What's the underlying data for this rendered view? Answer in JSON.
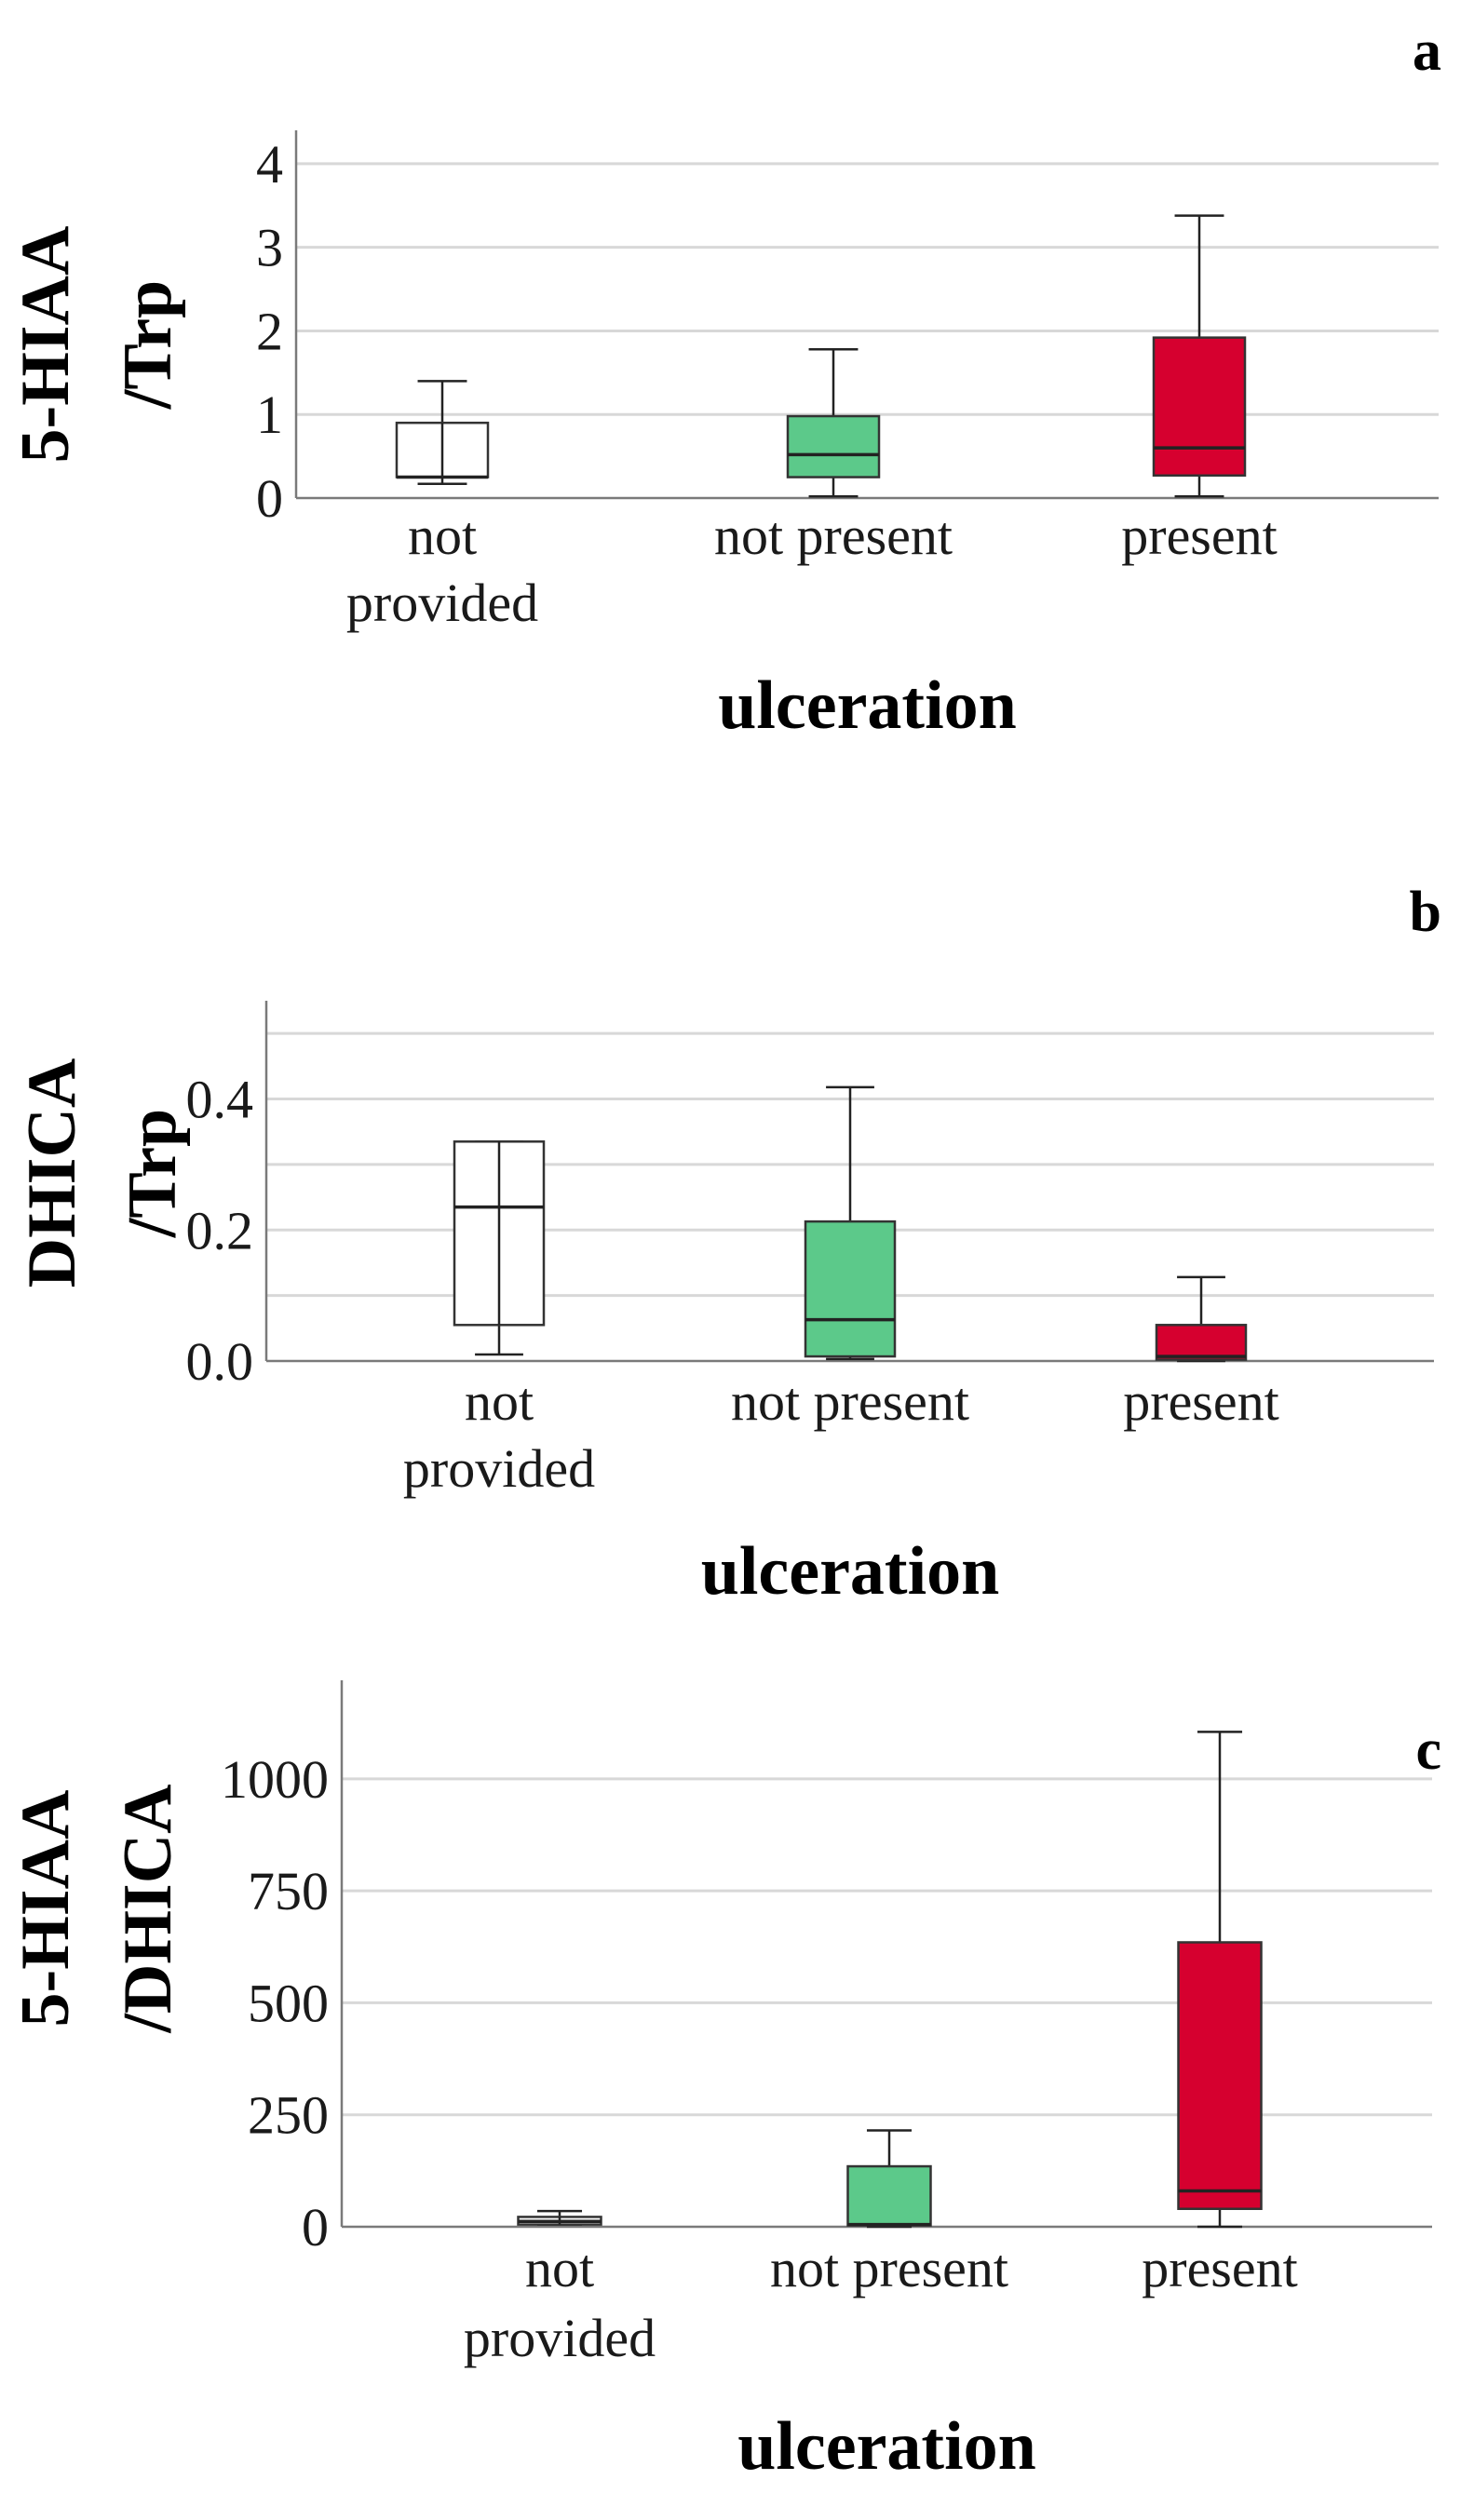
{
  "figure": {
    "colors": {
      "not_provided": "#ffffff",
      "not_present": "#5cc98a",
      "present": "#d6002f",
      "grid": "#d8d8d8",
      "axis": "#7a7a7a"
    }
  },
  "chart_data": [
    {
      "type": "box",
      "panel_label": "a",
      "ylabel_lines": [
        "5-HIAA",
        "/Trp"
      ],
      "xlabel": "ulceration",
      "categories": [
        [
          "not",
          "provided"
        ],
        [
          "not present"
        ],
        [
          "present"
        ]
      ],
      "ylim": [
        0,
        4.4
      ],
      "yticks": [
        0,
        1,
        2,
        3,
        4
      ],
      "yticklabels": [
        "0",
        "1",
        "2",
        "3",
        "4"
      ],
      "gridlines": [
        0,
        1,
        2,
        3,
        4
      ],
      "boxes": [
        {
          "category": "not provided",
          "whisker_low": 0.17,
          "q1": 0.25,
          "median": 0.25,
          "q3": 0.9,
          "whisker_high": 1.4,
          "color": "#ffffff"
        },
        {
          "category": "not present",
          "whisker_low": 0.02,
          "q1": 0.25,
          "median": 0.52,
          "q3": 0.98,
          "whisker_high": 1.78,
          "color": "#5cc98a"
        },
        {
          "category": "present",
          "whisker_low": 0.02,
          "q1": 0.27,
          "median": 0.6,
          "q3": 1.92,
          "whisker_high": 3.38,
          "color": "#d6002f"
        }
      ]
    },
    {
      "type": "box",
      "panel_label": "b",
      "ylabel_lines": [
        "DHICA",
        "/Trp"
      ],
      "xlabel": "ulceration",
      "categories": [
        [
          "not",
          "provided"
        ],
        [
          "not present"
        ],
        [
          "present"
        ]
      ],
      "ylim": [
        0,
        0.55
      ],
      "yticks": [
        0,
        0.2,
        0.4
      ],
      "yticklabels": [
        "0.0",
        "0.2",
        "0.4"
      ],
      "gridlines": [
        0.1,
        0.2,
        0.3,
        0.4,
        0.5
      ],
      "boxes": [
        {
          "category": "not provided",
          "whisker_low": 0.01,
          "q1": 0.055,
          "median": 0.235,
          "q3": 0.335,
          "whisker_high": 0.335,
          "color": "#ffffff"
        },
        {
          "category": "not present",
          "whisker_low": 0.003,
          "q1": 0.007,
          "median": 0.063,
          "q3": 0.213,
          "whisker_high": 0.418,
          "color": "#5cc98a"
        },
        {
          "category": "present",
          "whisker_low": 0.0,
          "q1": 0.002,
          "median": 0.007,
          "q3": 0.055,
          "whisker_high": 0.128,
          "color": "#d6002f"
        }
      ]
    },
    {
      "type": "box",
      "panel_label": "c",
      "ylabel_lines": [
        "5-HIAA",
        "/DHICA"
      ],
      "xlabel": "ulceration",
      "categories": [
        [
          "not",
          "provided"
        ],
        [
          "not present"
        ],
        [
          "present"
        ]
      ],
      "ylim": [
        0,
        1220
      ],
      "yticks": [
        0,
        250,
        500,
        750,
        1000
      ],
      "yticklabels": [
        "0",
        "250",
        "500",
        "750",
        "1000"
      ],
      "gridlines": [
        250,
        500,
        750,
        1000
      ],
      "boxes": [
        {
          "category": "not provided",
          "whisker_low": 5,
          "q1": 5,
          "median": 12,
          "q3": 22,
          "whisker_high": 35,
          "color": "#ffffff"
        },
        {
          "category": "not present",
          "whisker_low": 0,
          "q1": 3,
          "median": 5,
          "q3": 135,
          "whisker_high": 215,
          "color": "#5cc98a"
        },
        {
          "category": "present",
          "whisker_low": 0,
          "q1": 40,
          "median": 80,
          "q3": 635,
          "whisker_high": 1105,
          "color": "#d6002f"
        }
      ]
    }
  ]
}
